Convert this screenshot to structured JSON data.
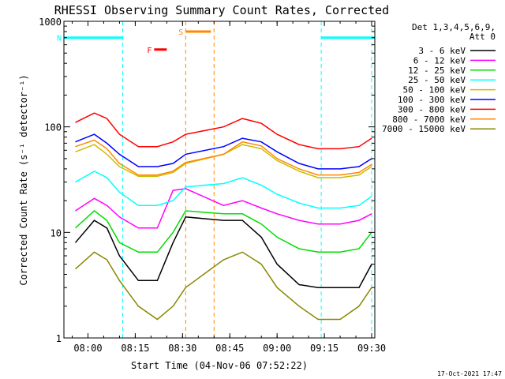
{
  "chart_data": {
    "type": "line",
    "title": "RHESSI Observing Summary Count Rates, Corrected",
    "xlabel": "Start Time (04-Nov-06 07:52:22)",
    "ylabel": "Corrected Count Rate (s⁻¹ detector⁻¹)",
    "yscale": "log",
    "ylim": [
      1,
      1000
    ],
    "xlim": [
      "07:52:22",
      "09:31:00"
    ],
    "x_ticks": [
      "08:00",
      "08:15",
      "08:30",
      "08:45",
      "09:00",
      "09:15",
      "09:30"
    ],
    "y_ticks": [
      "1",
      "10",
      "100",
      "1000"
    ],
    "grid": false,
    "legend_position": "top-right",
    "legend_header": [
      "Det 1,3,4,5,6,9,",
      "Att 0"
    ],
    "footer": "17-Oct-2021 17:47",
    "time_samples": [
      "07:56",
      "08:02",
      "08:06",
      "08:10",
      "08:16",
      "08:22",
      "08:27",
      "08:31",
      "08:43",
      "08:49",
      "08:55",
      "09:00",
      "09:07",
      "09:13",
      "09:20",
      "09:26",
      "09:30"
    ],
    "series": [
      {
        "name": "3 - 6 keV",
        "color": "#000000",
        "values": [
          8,
          13,
          11,
          6,
          3.5,
          3.5,
          8,
          14,
          13,
          13,
          9,
          5,
          3.2,
          3,
          3,
          3,
          5
        ]
      },
      {
        "name": "6 - 12 keV",
        "color": "#ff00ff",
        "values": [
          16,
          21,
          18,
          14,
          11,
          11,
          25,
          26,
          18,
          20,
          17,
          15,
          13,
          12,
          12,
          13,
          15
        ]
      },
      {
        "name": "12 - 25 keV",
        "color": "#00dd00",
        "values": [
          11,
          16,
          13,
          8,
          6.5,
          6.5,
          10,
          16,
          15,
          15,
          12,
          9,
          7,
          6.5,
          6.5,
          7,
          10
        ]
      },
      {
        "name": "25 - 50 keV",
        "color": "#00ffff",
        "values": [
          30,
          38,
          33,
          24,
          18,
          18,
          20,
          27,
          29,
          33,
          28,
          23,
          19,
          17,
          17,
          18,
          22
        ]
      },
      {
        "name": "50 - 100 keV",
        "color": "#ccbb00",
        "values": [
          58,
          68,
          55,
          42,
          34,
          34,
          37,
          45,
          55,
          68,
          62,
          48,
          38,
          33,
          33,
          35,
          42
        ]
      },
      {
        "name": "100 - 300 keV",
        "color": "#0000ff",
        "values": [
          72,
          85,
          70,
          55,
          42,
          42,
          45,
          55,
          65,
          78,
          72,
          58,
          45,
          40,
          40,
          42,
          50
        ]
      },
      {
        "name": "300 - 800 keV",
        "color": "#ff0000",
        "values": [
          110,
          135,
          120,
          85,
          65,
          65,
          72,
          85,
          100,
          120,
          108,
          85,
          68,
          62,
          62,
          65,
          78
        ]
      },
      {
        "name": "800 - 7000 keV",
        "color": "#ff8800",
        "values": [
          65,
          75,
          62,
          45,
          35,
          35,
          38,
          46,
          55,
          72,
          66,
          50,
          40,
          35,
          35,
          37,
          44
        ]
      },
      {
        "name": "7000 - 15000 keV",
        "color": "#888800",
        "values": [
          4.5,
          6.5,
          5.5,
          3.5,
          2,
          1.5,
          2,
          3,
          5.5,
          6.5,
          5,
          3,
          2,
          1.5,
          1.5,
          2,
          3
        ]
      }
    ],
    "flags": [
      {
        "label": "N",
        "color": "#00ffff",
        "level": 700,
        "start": "07:52:22",
        "end": "08:11"
      },
      {
        "label": "",
        "color": "#00ffff",
        "level": 700,
        "start": "09:14",
        "end": "09:31:00"
      },
      {
        "label": "S",
        "color": "#ff8800",
        "level": 800,
        "start": "08:31",
        "end": "08:39"
      },
      {
        "label": "F",
        "color": "#ff0000",
        "level": 540,
        "start": "08:21",
        "end": "08:25"
      }
    ],
    "night_boundaries": [
      {
        "time": "08:11",
        "color": "#00ffff"
      },
      {
        "time": "09:14",
        "color": "#00ffff"
      },
      {
        "time": "09:30",
        "color": "#00ffff"
      },
      {
        "time": "08:31",
        "color": "#ff8800"
      },
      {
        "time": "08:40",
        "color": "#ff8800"
      }
    ]
  }
}
